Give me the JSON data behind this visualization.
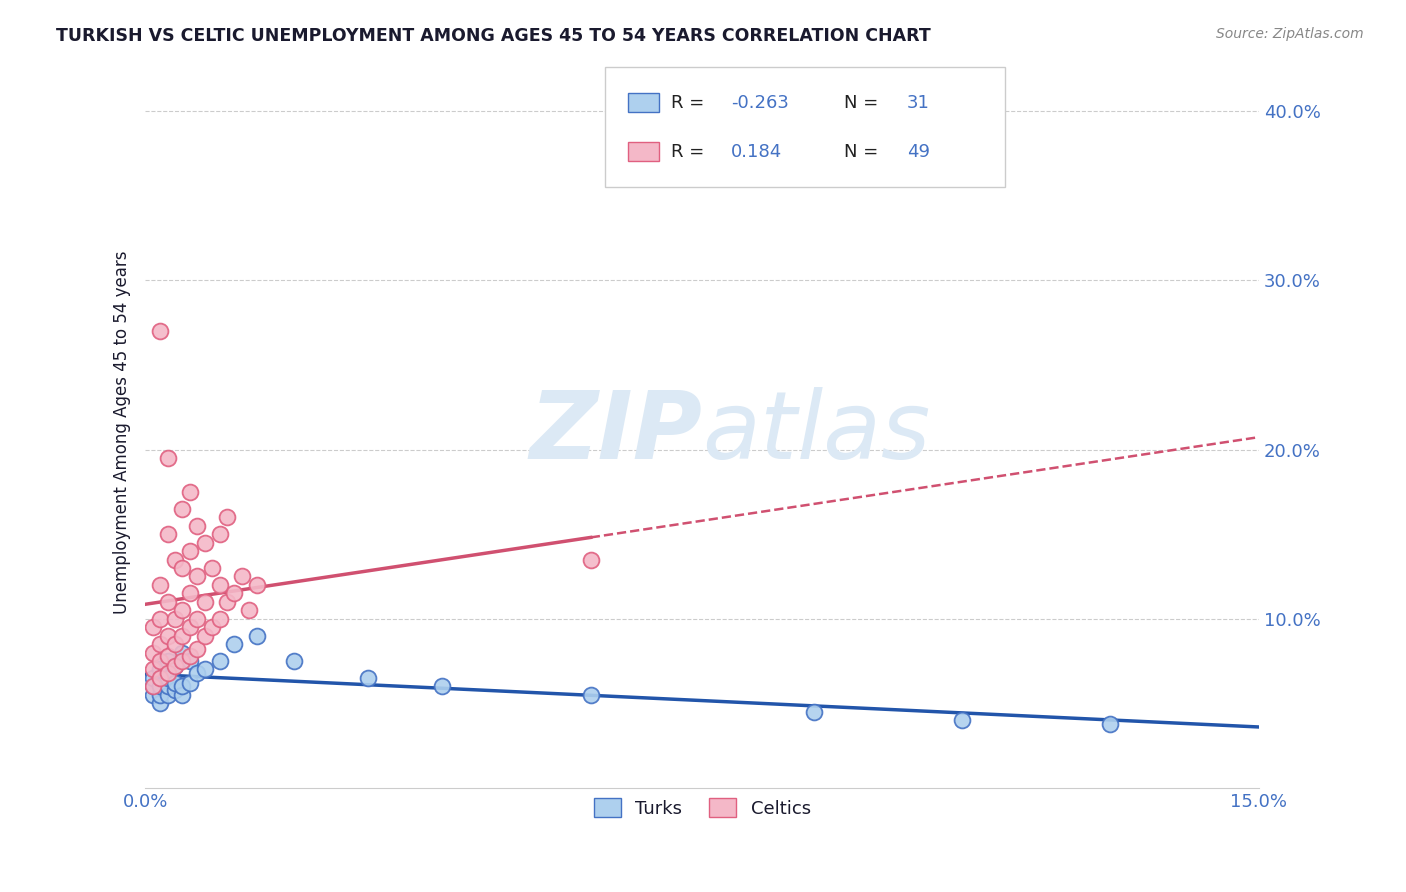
{
  "title": "TURKISH VS CELTIC UNEMPLOYMENT AMONG AGES 45 TO 54 YEARS CORRELATION CHART",
  "source": "Source: ZipAtlas.com",
  "ylabel": "Unemployment Among Ages 45 to 54 years",
  "xlim": [
    0.0,
    0.15
  ],
  "ylim": [
    0.0,
    0.42
  ],
  "xtick_positions": [
    0.0,
    0.15
  ],
  "xtick_labels": [
    "0.0%",
    "15.0%"
  ],
  "ytick_positions": [
    0.1,
    0.2,
    0.3,
    0.4
  ],
  "ytick_labels": [
    "10.0%",
    "20.0%",
    "30.0%",
    "40.0%"
  ],
  "turks_R": -0.263,
  "turks_N": 31,
  "celtics_R": 0.184,
  "celtics_N": 49,
  "turks_color": "#aed0ee",
  "celtics_color": "#f4b8c8",
  "turks_edge_color": "#4472c4",
  "celtics_edge_color": "#e06080",
  "turks_line_color": "#2255aa",
  "celtics_line_color": "#d05070",
  "background_color": "#ffffff",
  "grid_color": "#cccccc",
  "title_color": "#1a1a2e",
  "axis_label_color": "#4472c4",
  "watermark_color": "#dce9f5",
  "turks_x": [
    0.001,
    0.001,
    0.001,
    0.002,
    0.002,
    0.002,
    0.002,
    0.003,
    0.003,
    0.003,
    0.003,
    0.004,
    0.004,
    0.004,
    0.005,
    0.005,
    0.005,
    0.006,
    0.006,
    0.007,
    0.008,
    0.01,
    0.012,
    0.015,
    0.02,
    0.03,
    0.04,
    0.06,
    0.09,
    0.11,
    0.13
  ],
  "turks_y": [
    0.055,
    0.06,
    0.065,
    0.05,
    0.055,
    0.06,
    0.07,
    0.055,
    0.06,
    0.065,
    0.075,
    0.058,
    0.062,
    0.072,
    0.055,
    0.06,
    0.08,
    0.062,
    0.075,
    0.068,
    0.07,
    0.075,
    0.085,
    0.09,
    0.075,
    0.065,
    0.06,
    0.055,
    0.045,
    0.04,
    0.038
  ],
  "celtics_x": [
    0.001,
    0.001,
    0.001,
    0.001,
    0.002,
    0.002,
    0.002,
    0.002,
    0.002,
    0.003,
    0.003,
    0.003,
    0.003,
    0.003,
    0.004,
    0.004,
    0.004,
    0.004,
    0.005,
    0.005,
    0.005,
    0.005,
    0.005,
    0.006,
    0.006,
    0.006,
    0.006,
    0.006,
    0.007,
    0.007,
    0.007,
    0.007,
    0.008,
    0.008,
    0.008,
    0.009,
    0.009,
    0.01,
    0.01,
    0.01,
    0.011,
    0.011,
    0.012,
    0.013,
    0.014,
    0.015,
    0.002,
    0.003,
    0.06
  ],
  "celtics_y": [
    0.06,
    0.07,
    0.08,
    0.095,
    0.065,
    0.075,
    0.085,
    0.1,
    0.12,
    0.068,
    0.078,
    0.09,
    0.11,
    0.15,
    0.072,
    0.085,
    0.1,
    0.135,
    0.075,
    0.09,
    0.105,
    0.13,
    0.165,
    0.078,
    0.095,
    0.115,
    0.14,
    0.175,
    0.082,
    0.1,
    0.125,
    0.155,
    0.09,
    0.11,
    0.145,
    0.095,
    0.13,
    0.1,
    0.12,
    0.15,
    0.11,
    0.16,
    0.115,
    0.125,
    0.105,
    0.12,
    0.27,
    0.195,
    0.135
  ],
  "celtics_trend_x_solid_end": 0.06,
  "celtics_trend_extend_to": 0.15
}
